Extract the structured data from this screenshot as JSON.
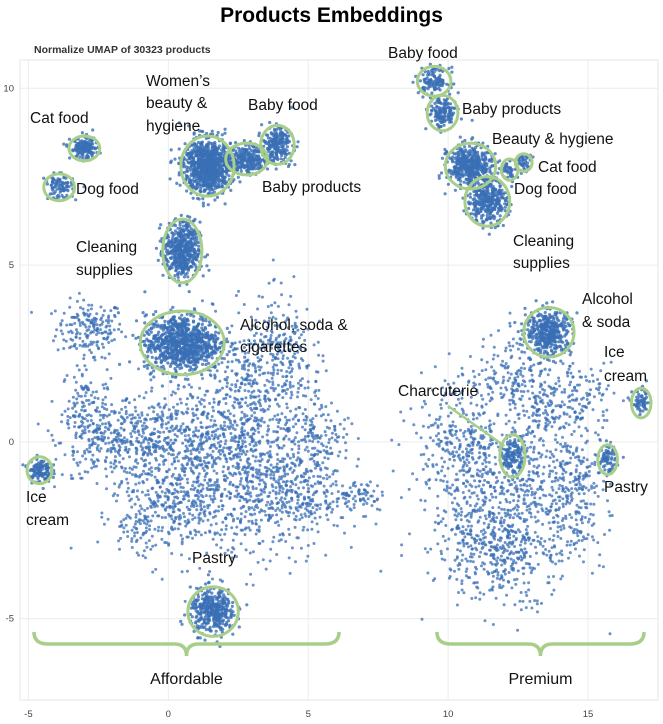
{
  "chart_data": {
    "type": "scatter",
    "title": "Products Embeddings",
    "subtitle": "Normalize UMAP of 30323 products",
    "xlabel": "",
    "ylabel": "",
    "xlim": [
      -5.3,
      17.5
    ],
    "ylim": [
      -7.3,
      10.8
    ],
    "x_ticks": [
      -5,
      0,
      5,
      10,
      15
    ],
    "y_ticks": [
      -5,
      0,
      5,
      10
    ],
    "x_tick_labels": [
      "-5",
      "0",
      "5",
      "10",
      "15"
    ],
    "y_tick_labels": [
      "-5",
      "0",
      "5",
      "10"
    ],
    "grid": true,
    "point_color": "#3a6fb5",
    "annotation_color": "#a8cf8a",
    "clusters": [
      {
        "label": "Cat food",
        "x": -3.0,
        "y": 8.3,
        "rx": 0.55,
        "ry": 0.35,
        "n": 160
      },
      {
        "label": "Dog food",
        "x": -3.9,
        "y": 7.2,
        "rx": 0.55,
        "ry": 0.38,
        "n": 90
      },
      {
        "label": "Women's beauty & hygiene",
        "x": 1.4,
        "y": 7.8,
        "rx": 0.95,
        "ry": 0.85,
        "n": 900
      },
      {
        "label": "Baby food",
        "x": 3.9,
        "y": 8.4,
        "rx": 0.6,
        "ry": 0.55,
        "n": 220
      },
      {
        "label": "Baby products",
        "x": 2.8,
        "y": 8.0,
        "rx": 0.75,
        "ry": 0.45,
        "n": 240
      },
      {
        "label": "Cleaning supplies",
        "x": 0.5,
        "y": 5.4,
        "rx": 0.7,
        "ry": 0.9,
        "n": 520
      },
      {
        "label": "Alcohol, soda & cigarettes",
        "x": 0.5,
        "y": 2.8,
        "rx": 1.5,
        "ry": 0.9,
        "n": 900
      },
      {
        "label": "Ice cream",
        "x": -4.6,
        "y": -0.8,
        "rx": 0.45,
        "ry": 0.38,
        "n": 120
      },
      {
        "label": "Pastry",
        "x": 1.6,
        "y": -4.8,
        "rx": 0.9,
        "ry": 0.7,
        "n": 380
      },
      {
        "label": "Baby food",
        "x": 9.5,
        "y": 10.2,
        "rx": 0.6,
        "ry": 0.42,
        "n": 120
      },
      {
        "label": "Baby products",
        "x": 9.8,
        "y": 9.3,
        "rx": 0.55,
        "ry": 0.5,
        "n": 150
      },
      {
        "label": "Beauty & hygiene",
        "x": 10.8,
        "y": 7.8,
        "rx": 0.9,
        "ry": 0.65,
        "n": 450
      },
      {
        "label": "Cat food",
        "x": 12.7,
        "y": 7.9,
        "rx": 0.3,
        "ry": 0.25,
        "n": 40
      },
      {
        "label": "Dog food",
        "x": 12.2,
        "y": 7.7,
        "rx": 0.3,
        "ry": 0.3,
        "n": 40
      },
      {
        "label": "Cleaning supplies",
        "x": 11.4,
        "y": 6.8,
        "rx": 0.8,
        "ry": 0.7,
        "n": 350
      },
      {
        "label": "Alcohol & soda",
        "x": 13.6,
        "y": 3.1,
        "rx": 0.9,
        "ry": 0.7,
        "n": 420
      },
      {
        "label": "Charcuterie",
        "x": 12.3,
        "y": -0.4,
        "rx": 0.45,
        "ry": 0.6,
        "n": 120
      },
      {
        "label": "Pastry",
        "x": 15.7,
        "y": -0.5,
        "rx": 0.35,
        "ry": 0.42,
        "n": 70
      },
      {
        "label": "Ice cream",
        "x": 16.9,
        "y": 1.1,
        "rx": 0.35,
        "ry": 0.42,
        "n": 60
      }
    ],
    "groups": [
      {
        "label": "Affordable",
        "x_range": [
          -4.8,
          6.1
        ]
      },
      {
        "label": "Premium",
        "x_range": [
          9.6,
          17.0
        ]
      }
    ]
  }
}
